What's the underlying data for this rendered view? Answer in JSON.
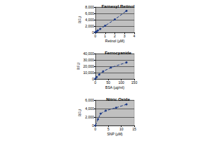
{
  "chart_data": [
    {
      "type": "line",
      "title": "Farnesyl Retinol",
      "x_label": "Retinol (µM)",
      "y_label": "RFU",
      "x": [
        0,
        0.125,
        0.25,
        0.5,
        1,
        2,
        3.2
      ],
      "values": [
        100,
        300,
        600,
        1100,
        2100,
        4100,
        6800
      ],
      "xlim": [
        0,
        4
      ],
      "xticks": [
        0,
        1,
        2,
        3,
        4
      ],
      "ylim": [
        0,
        8000
      ],
      "yticks": [
        0,
        2000,
        4000,
        6000,
        8000
      ],
      "grid": true,
      "color": "#1f3c88",
      "marker": "circle",
      "line_style": "dashed"
    },
    {
      "type": "line",
      "title": "Ferrocyanide",
      "x_label": "BSA (µg/ml)",
      "y_label": "RFU",
      "x": [
        0,
        5,
        15,
        30,
        60,
        120
      ],
      "values": [
        500,
        3000,
        7000,
        12000,
        18000,
        26000
      ],
      "xlim": [
        0,
        150
      ],
      "xticks": [
        0,
        50,
        100,
        150
      ],
      "ylim": [
        0,
        40000
      ],
      "yticks": [
        0,
        10000,
        20000,
        30000,
        40000
      ],
      "grid": true,
      "color": "#1f3c88",
      "marker": "circle",
      "line_style": "dashed"
    },
    {
      "type": "line",
      "title": "Nitric Oxide",
      "x_label": "SNP (µM)",
      "y_label": "RFU",
      "x": [
        0,
        1,
        2,
        4,
        8,
        12
      ],
      "values": [
        0,
        1500,
        2800,
        3500,
        4200,
        5000
      ],
      "xlim": [
        0,
        15
      ],
      "xticks": [
        0,
        5,
        10,
        15
      ],
      "ylim": [
        0,
        6000
      ],
      "yticks": [
        0,
        2000,
        4000,
        6000
      ],
      "grid": true,
      "color": "#1f3c88",
      "marker": "circle",
      "line_style": "dashed"
    }
  ]
}
